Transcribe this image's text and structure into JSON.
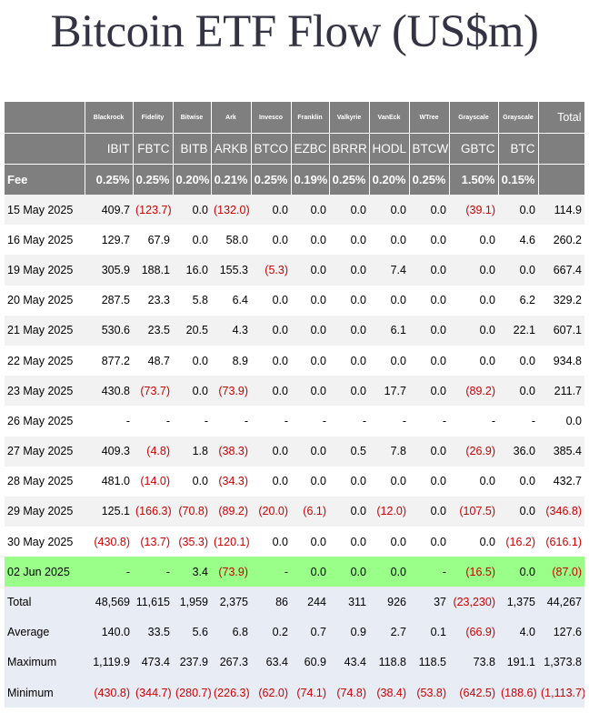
{
  "title": "Bitcoin ETF Flow (US$m)",
  "issuers": [
    "Blackrock",
    "Fidelity",
    "Bitwise",
    "Ark",
    "Invesco",
    "Franklin",
    "Valkyrie",
    "VanEck",
    "WTree",
    "Grayscale",
    "Grayscale"
  ],
  "total_label": "Total",
  "tickers": [
    "IBIT",
    "FBTC",
    "BITB",
    "ARKB",
    "BTCO",
    "EZBC",
    "BRRR",
    "HODL",
    "BTCW",
    "GBTC",
    "BTC"
  ],
  "fee_label": "Fee",
  "fees": [
    "0.25%",
    "0.25%",
    "0.20%",
    "0.21%",
    "0.25%",
    "0.19%",
    "0.25%",
    "0.20%",
    "0.25%",
    "1.50%",
    "0.15%"
  ],
  "rows": [
    {
      "date": "15 May 2025",
      "values": [
        "409.7",
        "(123.7)",
        "0.0",
        "(132.0)",
        "0.0",
        "0.0",
        "0.0",
        "0.0",
        "0.0",
        "(39.1)",
        "0.0"
      ],
      "total": "114.9"
    },
    {
      "date": "16 May 2025",
      "values": [
        "129.7",
        "67.9",
        "0.0",
        "58.0",
        "0.0",
        "0.0",
        "0.0",
        "0.0",
        "0.0",
        "0.0",
        "4.6"
      ],
      "total": "260.2"
    },
    {
      "date": "19 May 2025",
      "values": [
        "305.9",
        "188.1",
        "16.0",
        "155.3",
        "(5.3)",
        "0.0",
        "0.0",
        "7.4",
        "0.0",
        "0.0",
        "0.0"
      ],
      "total": "667.4"
    },
    {
      "date": "20 May 2025",
      "values": [
        "287.5",
        "23.3",
        "5.8",
        "6.4",
        "0.0",
        "0.0",
        "0.0",
        "0.0",
        "0.0",
        "0.0",
        "6.2"
      ],
      "total": "329.2"
    },
    {
      "date": "21 May 2025",
      "values": [
        "530.6",
        "23.5",
        "20.5",
        "4.3",
        "0.0",
        "0.0",
        "0.0",
        "6.1",
        "0.0",
        "0.0",
        "22.1"
      ],
      "total": "607.1"
    },
    {
      "date": "22 May 2025",
      "values": [
        "877.2",
        "48.7",
        "0.0",
        "8.9",
        "0.0",
        "0.0",
        "0.0",
        "0.0",
        "0.0",
        "0.0",
        "0.0"
      ],
      "total": "934.8"
    },
    {
      "date": "23 May 2025",
      "values": [
        "430.8",
        "(73.7)",
        "0.0",
        "(73.9)",
        "0.0",
        "0.0",
        "0.0",
        "17.7",
        "0.0",
        "(89.2)",
        "0.0"
      ],
      "total": "211.7"
    },
    {
      "date": "26 May 2025",
      "values": [
        "-",
        "-",
        "-",
        "-",
        "-",
        "-",
        "-",
        "-",
        "-",
        "-",
        "-"
      ],
      "total": "0.0"
    },
    {
      "date": "27 May 2025",
      "values": [
        "409.3",
        "(4.8)",
        "1.8",
        "(38.3)",
        "0.0",
        "0.0",
        "0.5",
        "7.8",
        "0.0",
        "(26.9)",
        "36.0"
      ],
      "total": "385.4"
    },
    {
      "date": "28 May 2025",
      "values": [
        "481.0",
        "(14.0)",
        "0.0",
        "(34.3)",
        "0.0",
        "0.0",
        "0.0",
        "0.0",
        "0.0",
        "0.0",
        "0.0"
      ],
      "total": "432.7"
    },
    {
      "date": "29 May 2025",
      "values": [
        "125.1",
        "(166.3)",
        "(70.8)",
        "(89.2)",
        "(20.0)",
        "(6.1)",
        "0.0",
        "(12.0)",
        "0.0",
        "(107.5)",
        "0.0"
      ],
      "total": "(346.8)"
    },
    {
      "date": "30 May 2025",
      "values": [
        "(430.8)",
        "(13.7)",
        "(35.3)",
        "(120.1)",
        "0.0",
        "0.0",
        "0.0",
        "0.0",
        "0.0",
        "0.0",
        "(16.2)"
      ],
      "total": "(616.1)"
    },
    {
      "date": "02 Jun 2025",
      "values": [
        "-",
        "-",
        "3.4",
        "(73.9)",
        "-",
        "0.0",
        "0.0",
        "0.0",
        "-",
        "(16.5)",
        "0.0"
      ],
      "total": "(87.0)",
      "highlight": true
    }
  ],
  "stats": [
    {
      "label": "Total",
      "values": [
        "48,569",
        "11,615",
        "1,959",
        "2,375",
        "86",
        "244",
        "311",
        "926",
        "37",
        "(23,230)",
        "1,375"
      ],
      "total": "44,267"
    },
    {
      "label": "Average",
      "values": [
        "140.0",
        "33.5",
        "5.6",
        "6.8",
        "0.2",
        "0.7",
        "0.9",
        "2.7",
        "0.1",
        "(66.9)",
        "4.0"
      ],
      "total": "127.6"
    },
    {
      "label": "Maximum",
      "values": [
        "1,119.9",
        "473.4",
        "237.9",
        "267.3",
        "63.4",
        "60.9",
        "43.4",
        "118.8",
        "118.5",
        "73.8",
        "191.1"
      ],
      "total": "1,373.8"
    },
    {
      "label": "Minimum",
      "values": [
        "(430.8)",
        "(344.7)",
        "(280.7)",
        "(226.3)",
        "(62.0)",
        "(74.1)",
        "(74.8)",
        "(38.4)",
        "(53.8)",
        "(642.5)",
        "(188.6)"
      ],
      "total": "(1,113.7)"
    }
  ],
  "colors": {
    "header_bg": "#7f7f7f",
    "highlight_row": "#99ff88",
    "negative": "#cc0000",
    "stats_bg": "#e8ecf5"
  }
}
